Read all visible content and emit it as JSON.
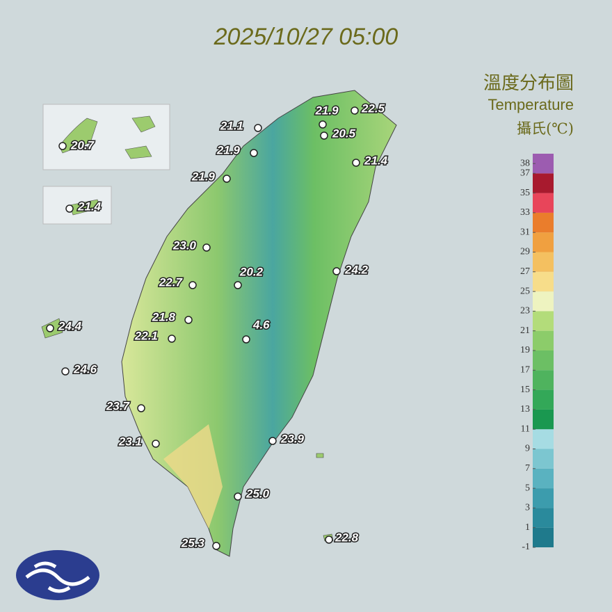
{
  "title": "2025/10/27 05:00",
  "legend": {
    "title": "溫度分布圖",
    "subtitle": "Temperature",
    "unit": "攝氏(℃)",
    "ticks": [
      38,
      37,
      35,
      33,
      31,
      29,
      27,
      25,
      23,
      21,
      19,
      17,
      15,
      13,
      11,
      9,
      7,
      5,
      3,
      1,
      -1
    ],
    "colors": [
      "#1f7a8c",
      "#2a8a9c",
      "#3c9cad",
      "#5ab2c0",
      "#7cc6d0",
      "#a6dce3",
      "#1a9850",
      "#33a858",
      "#4fb35e",
      "#6cbf64",
      "#8ccc6a",
      "#b3dc7a",
      "#eef3c0",
      "#f7dd8a",
      "#f4c060",
      "#f0a040",
      "#ea7d2c",
      "#e8455a",
      "#a81a2e",
      "#9c5cb0"
    ]
  },
  "stations": [
    "20.7",
    "21.4",
    "21.1",
    "21.9",
    "21.9",
    "23.0",
    "22.7",
    "20.2",
    "21.8",
    "22.1",
    "4.6",
    "24.4",
    "24.6",
    "23.7",
    "23.1",
    "21.9",
    "22.5",
    "20.5",
    "21.4",
    "24.2",
    "23.9",
    "25.0",
    "25.3",
    "22.8"
  ]
}
